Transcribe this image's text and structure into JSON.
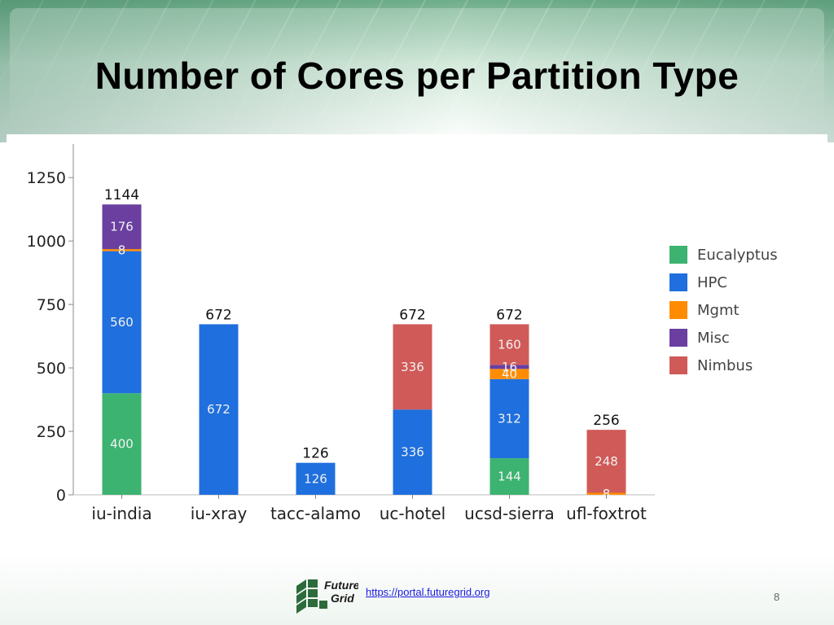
{
  "slide": {
    "title": "Number of Cores per Partition Type",
    "link_text": "https://portal.futuregrid.org",
    "page_number": "8",
    "logo_line1": "Future",
    "logo_line2": "Grid"
  },
  "chart_data": {
    "type": "bar",
    "stacked": true,
    "title": "",
    "xlabel": "",
    "ylabel": "",
    "ylim": [
      0,
      1350
    ],
    "yticks": [
      0,
      250,
      500,
      750,
      1000,
      1250
    ],
    "categories": [
      "iu-india",
      "iu-xray",
      "tacc-alamo",
      "uc-hotel",
      "ucsd-sierra",
      "ufl-foxtrot"
    ],
    "totals": [
      1144,
      672,
      126,
      672,
      672,
      256
    ],
    "series": [
      {
        "name": "Eucalyptus",
        "color": "#3cb371",
        "values": [
          400,
          0,
          0,
          0,
          144,
          0
        ],
        "labels": [
          "400",
          "",
          "",
          "",
          "144",
          ""
        ]
      },
      {
        "name": "HPC",
        "color": "#1f6fde",
        "values": [
          560,
          672,
          126,
          336,
          312,
          0
        ],
        "labels": [
          "560",
          "672",
          "126",
          "336",
          "312",
          ""
        ]
      },
      {
        "name": "Mgmt",
        "color": "#ff8c00",
        "values": [
          8,
          0,
          0,
          0,
          40,
          8
        ],
        "labels": [
          "8",
          "",
          "",
          "",
          "40",
          "8"
        ]
      },
      {
        "name": "Misc",
        "color": "#6a3fa0",
        "values": [
          176,
          0,
          0,
          0,
          16,
          0
        ],
        "labels": [
          "176",
          "",
          "",
          "",
          "16",
          ""
        ]
      },
      {
        "name": "Nimbus",
        "color": "#d05a58",
        "values": [
          0,
          0,
          0,
          336,
          160,
          248
        ],
        "labels": [
          "",
          "",
          "",
          "336",
          "160",
          "248"
        ]
      }
    ],
    "legend_position": "right",
    "grid": false
  }
}
